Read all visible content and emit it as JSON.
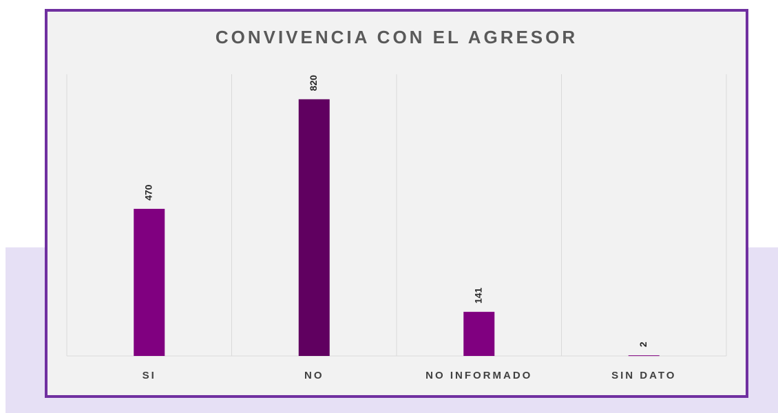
{
  "chart_data": {
    "type": "bar",
    "title": "CONVIVENCIA CON EL AGRESOR",
    "categories": [
      "SI",
      "NO",
      "NO INFORMADO",
      "SIN DATO"
    ],
    "values": [
      470,
      820,
      141,
      2
    ],
    "colors": [
      "#800080",
      "#600060",
      "#800080",
      "#800080"
    ],
    "ylim": [
      0,
      900
    ],
    "grid": true
  }
}
